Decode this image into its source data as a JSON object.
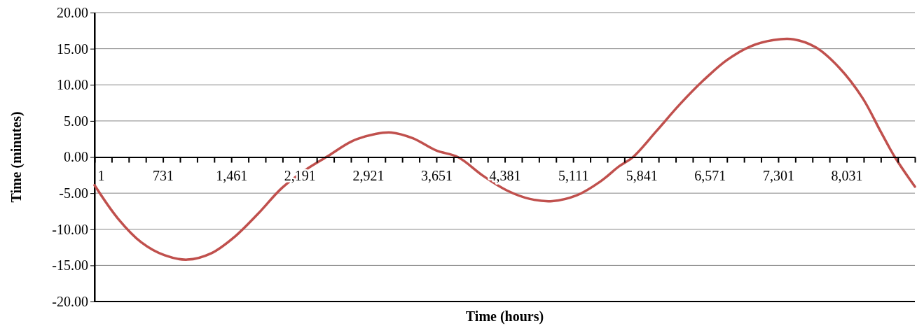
{
  "chart_data": {
    "type": "line",
    "xlabel": "Time (hours)",
    "ylabel": "Time (minutes)",
    "xlim": [
      1,
      8760
    ],
    "xticks": [
      1,
      {
        "value": 183.5,
        "label": null
      },
      {
        "value": 366,
        "label": null
      },
      {
        "value": 548.5,
        "label": null
      },
      731,
      {
        "value": 913.5,
        "label": null
      },
      {
        "value": 1096,
        "label": null
      },
      {
        "value": 1278.5,
        "label": null
      },
      {
        "value": 1461,
        "label": "1,461"
      },
      {
        "value": 1643.5,
        "label": null
      },
      {
        "value": 1826,
        "label": null
      },
      {
        "value": 2008.5,
        "label": null
      },
      {
        "value": 2191,
        "label": "2,191"
      },
      {
        "value": 2373.5,
        "label": null
      },
      {
        "value": 2556,
        "label": null
      },
      {
        "value": 2738.5,
        "label": null
      },
      {
        "value": 2921,
        "label": "2,921"
      },
      {
        "value": 3103.5,
        "label": null
      },
      {
        "value": 3286,
        "label": null
      },
      {
        "value": 3468.5,
        "label": null
      },
      {
        "value": 3651,
        "label": "3,651"
      },
      {
        "value": 3833.5,
        "label": null
      },
      {
        "value": 4016,
        "label": null
      },
      {
        "value": 4198.5,
        "label": null
      },
      {
        "value": 4381,
        "label": "4,381"
      },
      {
        "value": 4563.5,
        "label": null
      },
      {
        "value": 4746,
        "label": null
      },
      {
        "value": 4928.5,
        "label": null
      },
      {
        "value": 5111,
        "label": "5,111"
      },
      {
        "value": 5293.5,
        "label": null
      },
      {
        "value": 5476,
        "label": null
      },
      {
        "value": 5658.5,
        "label": null
      },
      {
        "value": 5841,
        "label": "5,841"
      },
      {
        "value": 6023.5,
        "label": null
      },
      {
        "value": 6206,
        "label": null
      },
      {
        "value": 6388.5,
        "label": null
      },
      {
        "value": 6571,
        "label": "6,571"
      },
      {
        "value": 6753.5,
        "label": null
      },
      {
        "value": 6936,
        "label": null
      },
      {
        "value": 7118.5,
        "label": null
      },
      {
        "value": 7301,
        "label": "7,301"
      },
      {
        "value": 7483.5,
        "label": null
      },
      {
        "value": 7666,
        "label": null
      },
      {
        "value": 7848.5,
        "label": null
      },
      {
        "value": 8031,
        "label": "8,031"
      },
      {
        "value": 8213.5,
        "label": null
      },
      {
        "value": 8396,
        "label": null
      },
      {
        "value": 8578.5,
        "label": null
      },
      {
        "value": 8760,
        "label": null
      }
    ],
    "ylim": [
      -20,
      20
    ],
    "yticks": [
      {
        "value": -20,
        "label": "-20.00"
      },
      {
        "value": -15,
        "label": "-15.00"
      },
      {
        "value": -10,
        "label": "-10.00"
      },
      {
        "value": -5,
        "label": "-5.00"
      },
      {
        "value": 0,
        "label": "0.00"
      },
      {
        "value": 5,
        "label": "5.00"
      },
      {
        "value": 10,
        "label": "10.00"
      },
      {
        "value": 15,
        "label": "15.00"
      },
      {
        "value": 20,
        "label": "20.00"
      }
    ],
    "grid": "y",
    "marker": "none",
    "line_style": "solid",
    "series": [
      {
        "color": "#c0504d",
        "x": [
          1,
          250,
          500,
          750,
          992,
          1250,
          1500,
          1750,
          2000,
          2250,
          2500,
          2750,
          3000,
          3172,
          3400,
          3650,
          3880,
          4150,
          4400,
          4650,
          4888,
          5150,
          5400,
          5600,
          5750,
          6000,
          6250,
          6500,
          6750,
          7000,
          7250,
          7464,
          7700,
          7950,
          8200,
          8400,
          8546,
          8760
        ],
        "values": [
          -3.9,
          -8.5,
          -11.8,
          -13.6,
          -14.2,
          -13.3,
          -11.0,
          -7.8,
          -4.3,
          -1.8,
          0.2,
          2.2,
          3.2,
          3.4,
          2.6,
          0.9,
          0,
          -2.6,
          -4.6,
          -5.8,
          -6.1,
          -5.3,
          -3.4,
          -1.3,
          0,
          3.6,
          7.3,
          10.6,
          13.4,
          15.3,
          16.2,
          16.3,
          15.2,
          12.4,
          8.2,
          3.4,
          0,
          -4.1
        ]
      }
    ]
  }
}
